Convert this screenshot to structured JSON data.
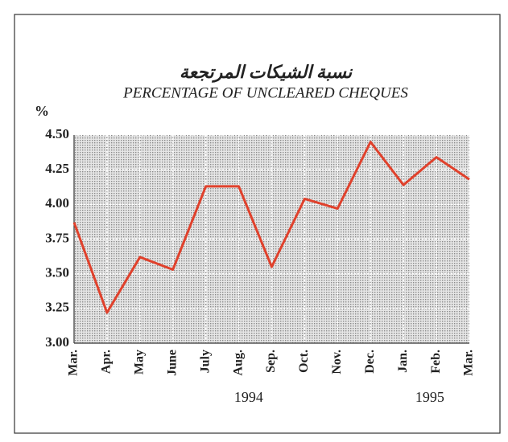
{
  "chart_data": {
    "type": "line",
    "title": "نسبة الشيكات المرتجعة",
    "subtitle": "PERCENTAGE OF UNCLEARED CHEQUES",
    "y_label": "%",
    "categories": [
      "Mar.",
      "Apr.",
      "May",
      "June",
      "July",
      "Aug.",
      "Sep.",
      "Oct.",
      "Nov.",
      "Dec.",
      "Jan.",
      "Feb.",
      "Mar."
    ],
    "years": [
      "1994",
      "1995"
    ],
    "values": [
      3.87,
      3.22,
      3.62,
      3.53,
      4.13,
      4.13,
      3.55,
      4.04,
      3.97,
      4.45,
      4.14,
      4.34,
      4.18
    ],
    "color": "#e0412c",
    "ylim": [
      3,
      4.5
    ],
    "yticks": [
      {
        "value": 3,
        "label": "3.00"
      },
      {
        "value": 3.25,
        "label": "3.25"
      },
      {
        "value": 3.5,
        "label": "3.50"
      },
      {
        "value": 3.75,
        "label": "3.75"
      },
      {
        "value": 4,
        "label": "4.00"
      },
      {
        "value": 4.25,
        "label": "4.25"
      },
      {
        "value": 4.5,
        "label": "4.50"
      }
    ],
    "grid": true
  }
}
